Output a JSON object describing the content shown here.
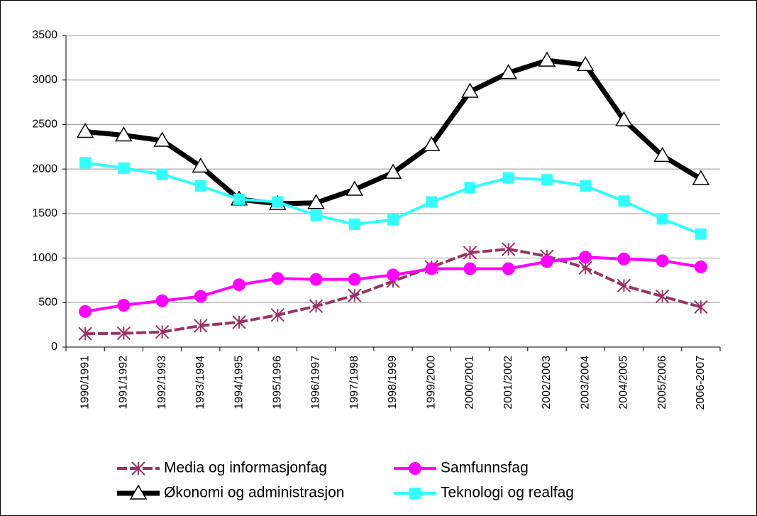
{
  "chart_data": {
    "type": "line",
    "categories": [
      "1990/1991",
      "1991/1992",
      "1992/1993",
      "1993/1994",
      "1994/1995",
      "1995/1996",
      "1996/1997",
      "1997/1998",
      "1998/1999",
      "1999/2000",
      "2000/2001",
      "2001/2002",
      "2002/2003",
      "2003/2004",
      "2004/2005",
      "2005/2006",
      "2006-2007"
    ],
    "series": [
      {
        "name": "Media og informasjonfag",
        "color": "#993366",
        "marker": "asterisk",
        "dashed": true,
        "values": [
          150,
          155,
          170,
          240,
          280,
          360,
          460,
          580,
          740,
          900,
          1060,
          1100,
          1020,
          890,
          690,
          570,
          450
        ]
      },
      {
        "name": "Samfunnsfag",
        "color": "#ff00ff",
        "marker": "circle",
        "values": [
          400,
          470,
          520,
          570,
          700,
          770,
          760,
          760,
          810,
          880,
          880,
          880,
          960,
          1010,
          990,
          970,
          900
        ]
      },
      {
        "name": "Økonomi og administrasjon",
        "color": "#000000",
        "marker": "triangle",
        "thick": true,
        "values": [
          2420,
          2380,
          2320,
          2030,
          1660,
          1610,
          1620,
          1770,
          1960,
          2270,
          2870,
          3080,
          3220,
          3170,
          2550,
          2150,
          1890
        ]
      },
      {
        "name": "Teknologi og realfag",
        "color": "#33ffff",
        "marker": "square",
        "values": [
          2070,
          2010,
          1940,
          1810,
          1660,
          1630,
          1480,
          1380,
          1430,
          1630,
          1790,
          1900,
          1880,
          1810,
          1640,
          1440,
          1270
        ]
      }
    ],
    "ylim": [
      0,
      3500
    ],
    "yticks": [
      0,
      500,
      1000,
      1500,
      2000,
      2500,
      3000,
      3500
    ],
    "grid": true,
    "legend": "bottom"
  }
}
